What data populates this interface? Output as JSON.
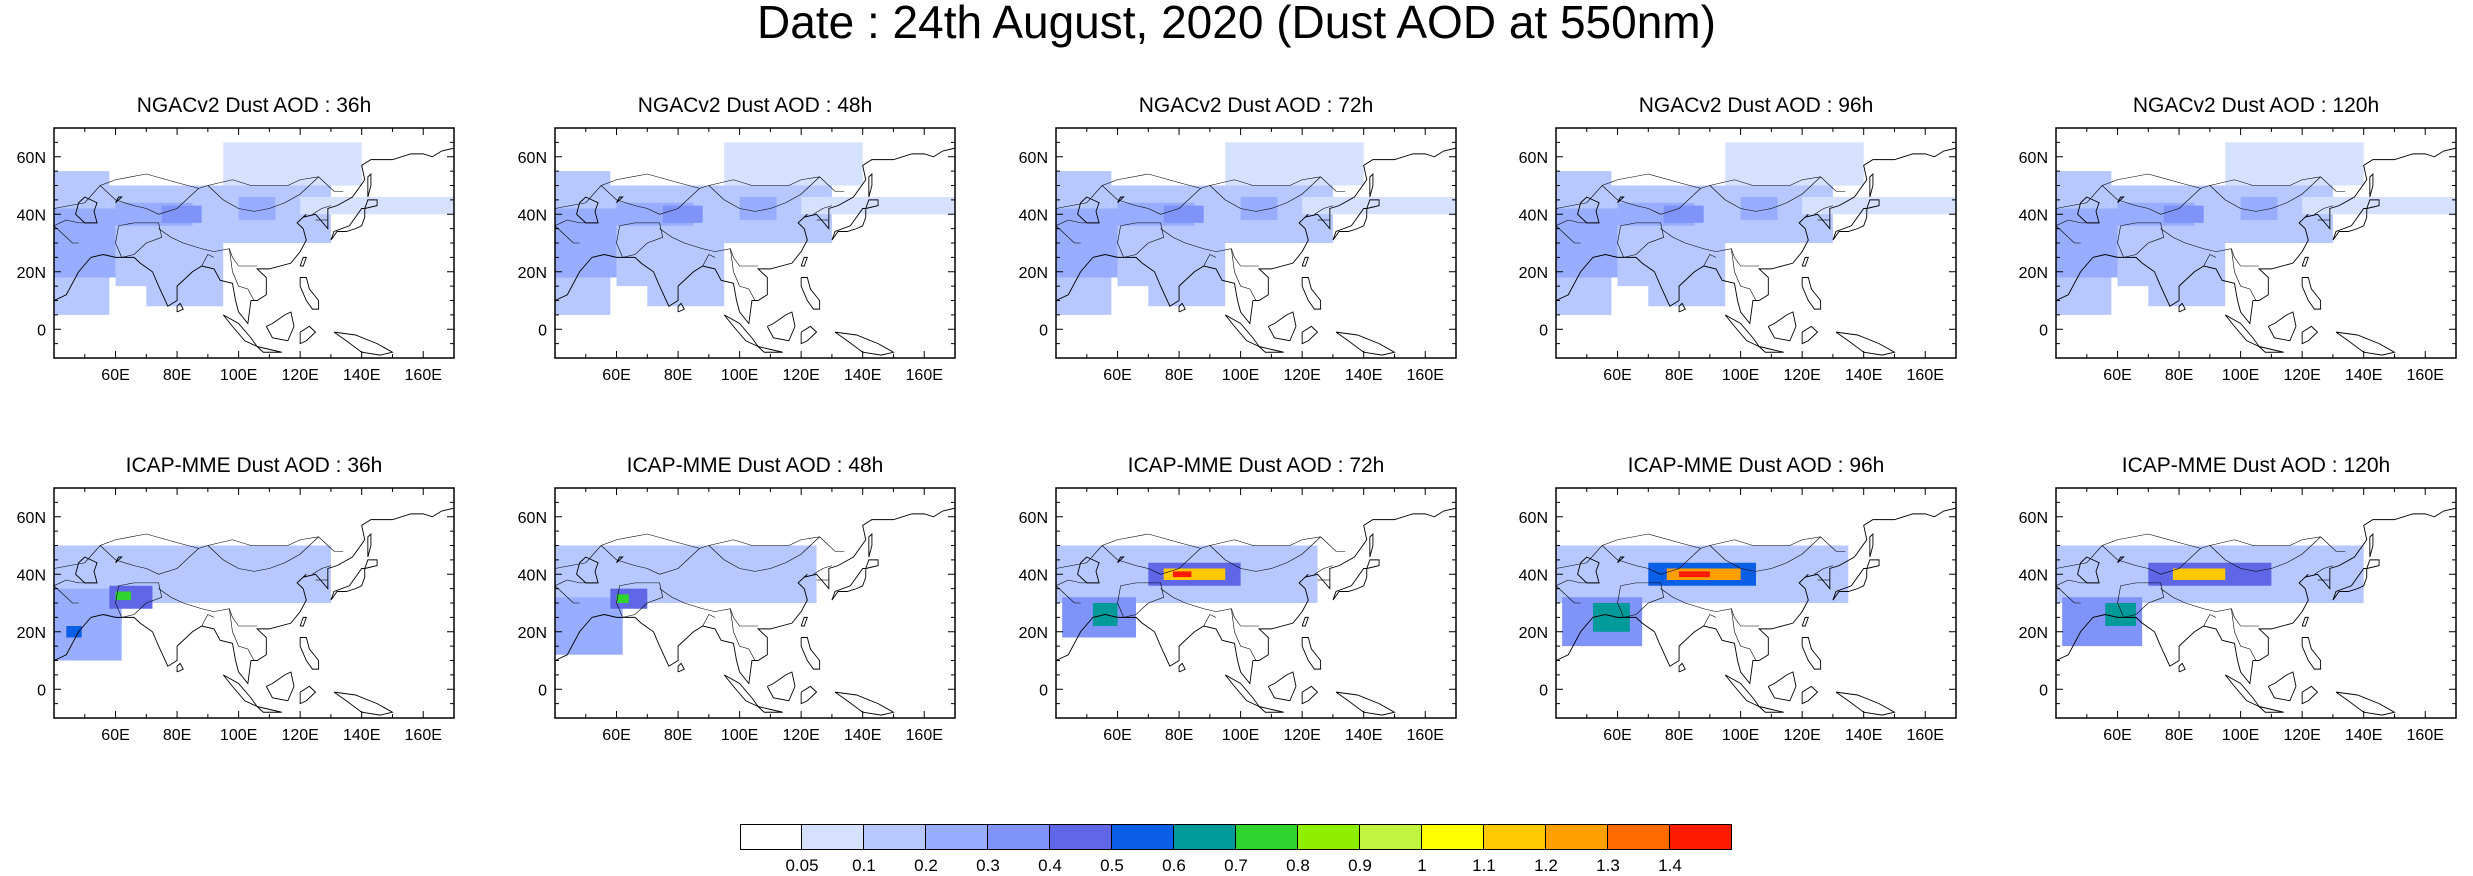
{
  "title": "Date : 24th August, 2020 (Dust AOD at 550nm)",
  "panels": [
    {
      "title": "NGACv2 Dust AOD : 36h",
      "model": "NGACv2",
      "lead": "36h"
    },
    {
      "title": "NGACv2 Dust AOD : 48h",
      "model": "NGACv2",
      "lead": "48h"
    },
    {
      "title": "NGACv2 Dust AOD : 72h",
      "model": "NGACv2",
      "lead": "72h"
    },
    {
      "title": "NGACv2 Dust AOD : 96h",
      "model": "NGACv2",
      "lead": "96h"
    },
    {
      "title": "NGACv2 Dust AOD : 120h",
      "model": "NGACv2",
      "lead": "120h"
    },
    {
      "title": "ICAP-MME Dust AOD : 36h",
      "model": "ICAP-MME",
      "lead": "36h"
    },
    {
      "title": "ICAP-MME Dust AOD : 48h",
      "model": "ICAP-MME",
      "lead": "48h"
    },
    {
      "title": "ICAP-MME Dust AOD : 72h",
      "model": "ICAP-MME",
      "lead": "72h"
    },
    {
      "title": "ICAP-MME Dust AOD : 96h",
      "model": "ICAP-MME",
      "lead": "96h"
    },
    {
      "title": "ICAP-MME Dust AOD : 120h",
      "model": "ICAP-MME",
      "lead": "120h"
    }
  ],
  "map": {
    "lon_range": [
      40,
      170
    ],
    "lat_range": [
      -10,
      70
    ],
    "lon_ticks": [
      60,
      80,
      100,
      120,
      140,
      160
    ],
    "lon_tick_labels": [
      "60E",
      "80E",
      "100E",
      "120E",
      "140E",
      "160E"
    ],
    "lat_ticks": [
      0,
      20,
      40,
      60
    ],
    "lat_tick_labels": [
      "0",
      "20N",
      "40N",
      "60N"
    ]
  },
  "colorbar": {
    "labels": [
      "0.05",
      "0.1",
      "0.2",
      "0.3",
      "0.4",
      "0.5",
      "0.6",
      "0.7",
      "0.8",
      "0.9",
      "1",
      "1.1",
      "1.2",
      "1.3",
      "1.4"
    ],
    "colors": [
      "#ffffff",
      "#d6e0ff",
      "#b6c8ff",
      "#98adff",
      "#7f93f8",
      "#5f67e6",
      "#0b5fe6",
      "#009a9a",
      "#2fd42f",
      "#8ef000",
      "#bff540",
      "#ffff00",
      "#ffc800",
      "#ff9f00",
      "#ff6a00",
      "#ff1a00"
    ]
  },
  "chart_data": {
    "type": "heatmap",
    "title": "Date : 24th August, 2020 (Dust AOD at 550nm)",
    "variable": "Dust AOD at 550nm",
    "levels": [
      0.05,
      0.1,
      0.2,
      0.3,
      0.4,
      0.5,
      0.6,
      0.7,
      0.8,
      0.9,
      1,
      1.1,
      1.2,
      1.3,
      1.4
    ],
    "domain": {
      "lon": [
        40,
        170
      ],
      "lat": [
        -10,
        70
      ]
    },
    "fields": {
      "NGACv2": [
        {
          "lon": [
            40,
            58
          ],
          "lat": [
            5,
            55
          ],
          "aod": 0.15
        },
        {
          "lon": [
            58,
            130
          ],
          "lat": [
            30,
            50
          ],
          "aod": 0.15
        },
        {
          "lon": [
            60,
            72
          ],
          "lat": [
            15,
            35
          ],
          "aod": 0.15
        },
        {
          "lon": [
            70,
            95
          ],
          "lat": [
            8,
            30
          ],
          "aod": 0.1
        },
        {
          "lon": [
            95,
            140
          ],
          "lat": [
            50,
            65
          ],
          "aod": 0.07
        },
        {
          "lon": [
            120,
            170
          ],
          "lat": [
            40,
            46
          ],
          "aod": 0.07
        },
        {
          "lon": [
            40,
            60
          ],
          "lat": [
            18,
            42
          ],
          "aod": 0.25
        },
        {
          "lon": [
            60,
            85
          ],
          "lat": [
            36,
            44
          ],
          "aod": 0.25
        },
        {
          "lon": [
            75,
            88
          ],
          "lat": [
            37,
            43
          ],
          "aod": 0.35
        },
        {
          "lon": [
            100,
            112
          ],
          "lat": [
            38,
            46
          ],
          "aod": 0.25
        }
      ],
      "ICAP-MME_36h": [
        {
          "lon": [
            40,
            130
          ],
          "lat": [
            30,
            50
          ],
          "aod": 0.15
        },
        {
          "lon": [
            40,
            62
          ],
          "lat": [
            10,
            35
          ],
          "aod": 0.25
        },
        {
          "lon": [
            58,
            72
          ],
          "lat": [
            28,
            36
          ],
          "aod": 0.45
        },
        {
          "lon": [
            60,
            65
          ],
          "lat": [
            31,
            34
          ],
          "aod": 0.75
        },
        {
          "lon": [
            44,
            49
          ],
          "lat": [
            18,
            22
          ],
          "aod": 0.55
        }
      ],
      "ICAP-MME_48h": [
        {
          "lon": [
            40,
            125
          ],
          "lat": [
            30,
            50
          ],
          "aod": 0.15
        },
        {
          "lon": [
            40,
            62
          ],
          "lat": [
            12,
            32
          ],
          "aod": 0.25
        },
        {
          "lon": [
            58,
            70
          ],
          "lat": [
            28,
            35
          ],
          "aod": 0.45
        },
        {
          "lon": [
            60,
            64
          ],
          "lat": [
            30,
            33
          ],
          "aod": 0.75
        }
      ],
      "ICAP-MME_72h": [
        {
          "lon": [
            40,
            125
          ],
          "lat": [
            30,
            50
          ],
          "aod": 0.15
        },
        {
          "lon": [
            42,
            66
          ],
          "lat": [
            18,
            32
          ],
          "aod": 0.35
        },
        {
          "lon": [
            52,
            60
          ],
          "lat": [
            22,
            30
          ],
          "aod": 0.65
        },
        {
          "lon": [
            70,
            100
          ],
          "lat": [
            36,
            44
          ],
          "aod": 0.45
        },
        {
          "lon": [
            75,
            95
          ],
          "lat": [
            38,
            42
          ],
          "aod": 1.15
        },
        {
          "lon": [
            78,
            84
          ],
          "lat": [
            39,
            41
          ],
          "aod": 1.4
        }
      ],
      "ICAP-MME_96h": [
        {
          "lon": [
            40,
            135
          ],
          "lat": [
            30,
            50
          ],
          "aod": 0.15
        },
        {
          "lon": [
            42,
            68
          ],
          "lat": [
            15,
            32
          ],
          "aod": 0.35
        },
        {
          "lon": [
            52,
            64
          ],
          "lat": [
            20,
            30
          ],
          "aod": 0.65
        },
        {
          "lon": [
            70,
            105
          ],
          "lat": [
            36,
            44
          ],
          "aod": 0.5
        },
        {
          "lon": [
            76,
            100
          ],
          "lat": [
            38,
            42
          ],
          "aod": 1.2
        },
        {
          "lon": [
            80,
            90
          ],
          "lat": [
            39,
            41
          ],
          "aod": 1.4
        }
      ],
      "ICAP-MME_120h": [
        {
          "lon": [
            40,
            140
          ],
          "lat": [
            30,
            50
          ],
          "aod": 0.15
        },
        {
          "lon": [
            42,
            68
          ],
          "lat": [
            15,
            32
          ],
          "aod": 0.35
        },
        {
          "lon": [
            56,
            66
          ],
          "lat": [
            22,
            30
          ],
          "aod": 0.65
        },
        {
          "lon": [
            70,
            110
          ],
          "lat": [
            36,
            44
          ],
          "aod": 0.45
        },
        {
          "lon": [
            78,
            95
          ],
          "lat": [
            38,
            42
          ],
          "aod": 1.1
        }
      ]
    }
  }
}
